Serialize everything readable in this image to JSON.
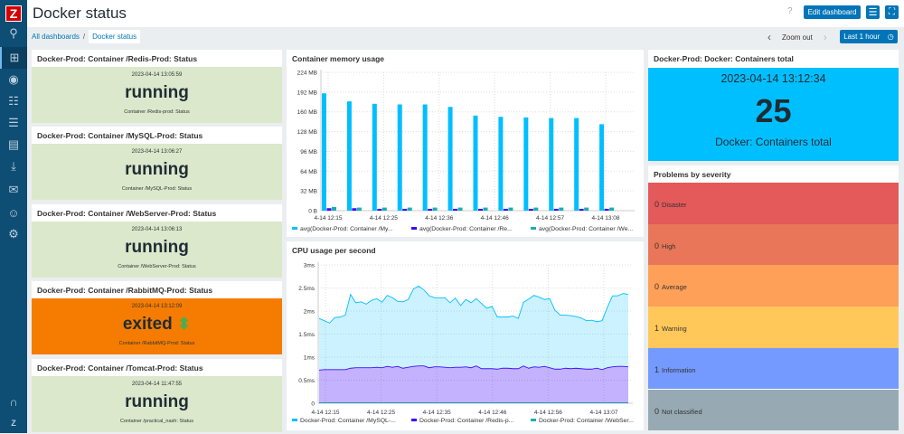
{
  "sidebar": {
    "logo": "Z",
    "items": [
      "search-icon",
      "dashboard-icon",
      "eye-icon",
      "hierarchy-icon",
      "list-icon",
      "report-icon",
      "download-icon",
      "mail-icon",
      "users-icon",
      "gear-icon"
    ],
    "bottom": [
      "headset-icon",
      "zabbix-share-icon"
    ]
  },
  "header": {
    "title": "Docker status",
    "help": "?",
    "edit_label": "Edit dashboard"
  },
  "breadcrumb": {
    "root": "All dashboards",
    "sep": "/",
    "current": "Docker status"
  },
  "timeline": {
    "zoom_out": "Zoom out",
    "range": "Last 1 hour"
  },
  "status_widgets": [
    {
      "title": "Docker-Prod: Container /Redis-Prod: Status",
      "time": "2023-04-14 13:05:59",
      "value": "running",
      "desc": "Container /Redis-prod: Status",
      "color": "#dbe8cc"
    },
    {
      "title": "Docker-Prod: Container /MySQL-Prod: Status",
      "time": "2023-04-14 13:06:27",
      "value": "running",
      "desc": "Container /MySQL-Prod: Status",
      "color": "#dbe8cc"
    },
    {
      "title": "Docker-Prod: Container /WebServer-Prod: Status",
      "time": "2023-04-14 13:06:13",
      "value": "running",
      "desc": "Container /WebServer-Prod: Status",
      "color": "#dbe8cc"
    },
    {
      "title": "Docker-Prod: Container /RabbitMQ-Prod: Status",
      "time": "2023-04-14 13:12:09",
      "value": "exited",
      "desc": "Container /RabbitMQ-Prod: Status",
      "color": "#f57c00",
      "arrow": "⬍"
    },
    {
      "title": "Docker-Prod: Container /Tomcat-Prod: Status",
      "time": "2023-04-14 11:47:55",
      "value": "running",
      "desc": "Container /practical_nash: Status",
      "color": "#dbe8cc"
    }
  ],
  "containers_total": {
    "title": "Docker-Prod: Docker: Containers total",
    "time": "2023-04-14 13:12:34",
    "value": "25",
    "desc": "Docker: Containers total",
    "color": "#00bfff"
  },
  "problems": {
    "title": "Problems by severity",
    "rows": [
      {
        "count": "0",
        "label": "Disaster",
        "color": "#e45959"
      },
      {
        "count": "0",
        "label": "High",
        "color": "#e97659"
      },
      {
        "count": "0",
        "label": "Average",
        "color": "#ffa059"
      },
      {
        "count": "1",
        "label": "Warning",
        "color": "#ffc859"
      },
      {
        "count": "1",
        "label": "Information",
        "color": "#7499ff"
      },
      {
        "count": "0",
        "label": "Not classified",
        "color": "#97aab3"
      }
    ]
  },
  "chart_data": [
    {
      "type": "bar",
      "title": "Container memory usage",
      "ylim": [
        0,
        224
      ],
      "yunit": "MB",
      "yticks": [
        "0 B",
        "32 MB",
        "64 MB",
        "96 MB",
        "128 MB",
        "160 MB",
        "192 MB",
        "224 MB"
      ],
      "xticks": [
        "4-14 12:15",
        "4-14 12:25",
        "4-14 12:36",
        "4-14 12:46",
        "4-14 12:57",
        "4-14 13:08"
      ],
      "grid": true,
      "legend": "bottom",
      "series": [
        {
          "name": "avg(Docker-Prod: Container /My...",
          "color": "#00bfff",
          "values": [
            190,
            177,
            173,
            172,
            172,
            168,
            154,
            152,
            151,
            150,
            150,
            140
          ]
        },
        {
          "name": "avg(Docker-Prod: Container /Re...",
          "color": "#4000ff",
          "values": [
            4,
            4,
            3,
            3,
            3,
            3,
            3,
            3,
            3,
            3,
            3,
            3
          ]
        },
        {
          "name": "avg(Docker-Prod: Container /We...",
          "color": "#1aafb0",
          "values": [
            6,
            5,
            5,
            5,
            5,
            5,
            5,
            5,
            5,
            5,
            5,
            5
          ]
        }
      ]
    },
    {
      "type": "area",
      "stacked": true,
      "title": "CPU usage per second",
      "ylim": [
        0,
        3
      ],
      "yunit": "ms",
      "yticks": [
        "0",
        "0.5ms",
        "1ms",
        "1.5ms",
        "2ms",
        "2.5ms",
        "3ms"
      ],
      "xticks": [
        "4-14 12:15",
        "4-14 12:25",
        "4-14 12:35",
        "4-14 12:46",
        "4-14 12:56",
        "4-14 13:07"
      ],
      "grid": true,
      "legend": "bottom",
      "series": [
        {
          "name": "Docker-Prod: Container /MySQL-...",
          "color": "#00bfff",
          "values": [
            1.12,
            1.06,
            1.01,
            1.13,
            1.14,
            1.18,
            1.6,
            1.41,
            1.43,
            1.38,
            1.46,
            1.49,
            1.42,
            1.54,
            1.51,
            1.41,
            1.44,
            1.47,
            1.68,
            1.73,
            1.65,
            1.56,
            1.5,
            1.49,
            1.51,
            1.41,
            1.5,
            1.34,
            1.46,
            1.41,
            1.46,
            1.41,
            1.31,
            1.35,
            1.13,
            1.11,
            1.11,
            1.14,
            1.09,
            1.38,
            1.5,
            1.55,
            1.52,
            1.45,
            1.5,
            1.28,
            1.17,
            1.15,
            1.15,
            1.12,
            1.1,
            1.05,
            1.06,
            1.01,
            1.06,
            1.31,
            1.54,
            1.53,
            1.58,
            1.57
          ]
        },
        {
          "name": "Docker-Prod: Container /Redis-p...",
          "color": "#4000ff",
          "values": [
            0.71,
            0.72,
            0.72,
            0.72,
            0.72,
            0.72,
            0.75,
            0.76,
            0.76,
            0.76,
            0.76,
            0.77,
            0.76,
            0.79,
            0.77,
            0.79,
            0.75,
            0.77,
            0.79,
            0.8,
            0.8,
            0.76,
            0.78,
            0.78,
            0.77,
            0.76,
            0.77,
            0.77,
            0.78,
            0.76,
            0.8,
            0.74,
            0.74,
            0.74,
            0.73,
            0.75,
            0.75,
            0.74,
            0.74,
            0.8,
            0.75,
            0.78,
            0.77,
            0.79,
            0.76,
            0.73,
            0.73,
            0.75,
            0.74,
            0.75,
            0.74,
            0.73,
            0.73,
            0.75,
            0.72,
            0.76,
            0.78,
            0.79,
            0.79,
            0.78
          ]
        },
        {
          "name": "Docker-Prod: Container /WebSer...",
          "color": "#1aafb0",
          "values": [
            0.01,
            0.01,
            0.01,
            0.01,
            0.01,
            0.01,
            0.01,
            0.01,
            0.01,
            0.01,
            0.01,
            0.01,
            0.01,
            0.01,
            0.01,
            0.01,
            0.01,
            0.01,
            0.01,
            0.01,
            0.01,
            0.01,
            0.01,
            0.01,
            0.01,
            0.01,
            0.01,
            0.01,
            0.01,
            0.01,
            0.01,
            0.01,
            0.01,
            0.01,
            0.01,
            0.01,
            0.01,
            0.01,
            0.01,
            0.01,
            0.01,
            0.01,
            0.01,
            0.01,
            0.01,
            0.01,
            0.01,
            0.01,
            0.01,
            0.01,
            0.01,
            0.01,
            0.01,
            0.01,
            0.01,
            0.01,
            0.01,
            0.01,
            0.01,
            0.01
          ]
        }
      ]
    }
  ]
}
